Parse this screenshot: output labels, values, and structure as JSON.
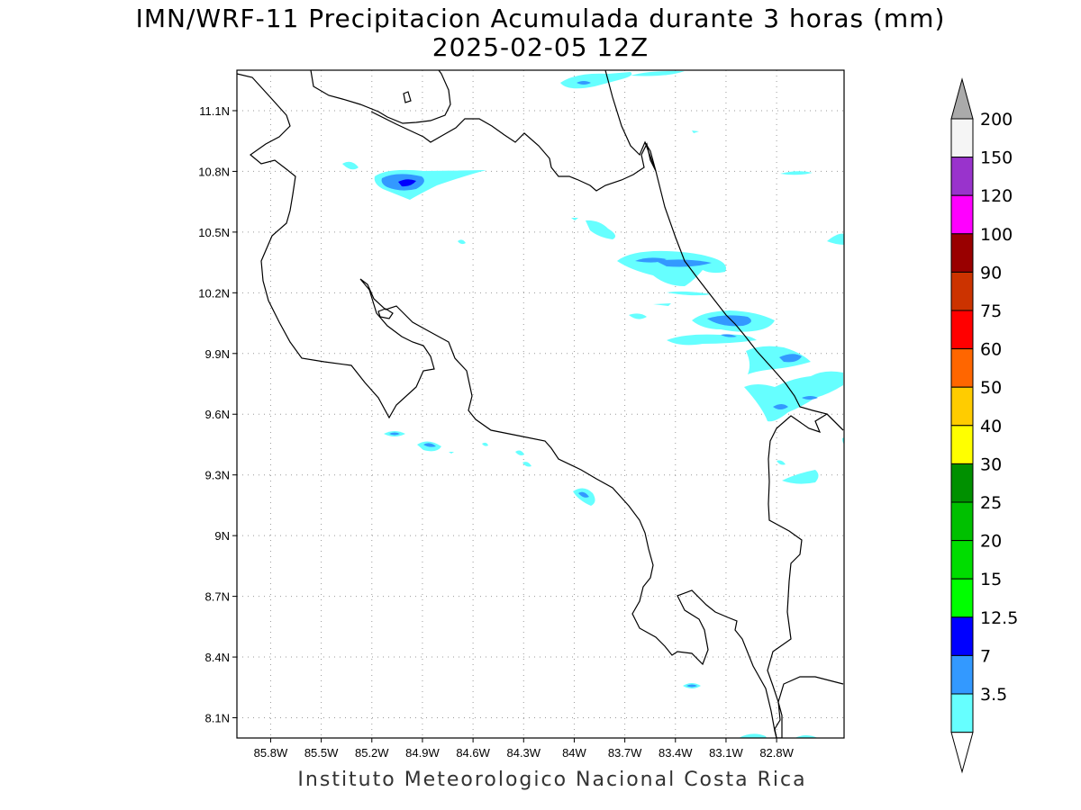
{
  "title": "IMN/WRF-11 Precipitacion Acumulada durante 3 horas (mm)",
  "subtitle": "2025-02-05 12Z",
  "credit": "Instituto Meteorologico Nacional Costa Rica",
  "map": {
    "lon_range": [
      -86.0,
      -82.4
    ],
    "lat_range": [
      8.0,
      11.3
    ],
    "lon_ticks": [
      {
        "value": -85.8,
        "label": "85.8W"
      },
      {
        "value": -85.5,
        "label": "85.5W"
      },
      {
        "value": -85.2,
        "label": "85.2W"
      },
      {
        "value": -84.9,
        "label": "84.9W"
      },
      {
        "value": -84.6,
        "label": "84.6W"
      },
      {
        "value": -84.3,
        "label": "84.3W"
      },
      {
        "value": -84.0,
        "label": "84W"
      },
      {
        "value": -83.7,
        "label": "83.7W"
      },
      {
        "value": -83.4,
        "label": "83.4W"
      },
      {
        "value": -83.1,
        "label": "83.1W"
      },
      {
        "value": -82.8,
        "label": "82.8W"
      }
    ],
    "lat_ticks": [
      {
        "value": 11.1,
        "label": "11.1N"
      },
      {
        "value": 10.8,
        "label": "10.8N"
      },
      {
        "value": 10.5,
        "label": "10.5N"
      },
      {
        "value": 10.2,
        "label": "10.2N"
      },
      {
        "value": 9.9,
        "label": "9.9N"
      },
      {
        "value": 9.6,
        "label": "9.6N"
      },
      {
        "value": 9.3,
        "label": "9.3N"
      },
      {
        "value": 9.0,
        "label": "9N"
      },
      {
        "value": 8.7,
        "label": "8.7N"
      },
      {
        "value": 8.4,
        "label": "8.4N"
      },
      {
        "value": 8.1,
        "label": "8.1N"
      }
    ],
    "grid": true
  },
  "colorbar": {
    "levels": [
      {
        "label": "3.5",
        "color": "#66ffff"
      },
      {
        "label": "7",
        "color": "#3399ff"
      },
      {
        "label": "12.5",
        "color": "#0000ff"
      },
      {
        "label": "15",
        "color": "#00ff00"
      },
      {
        "label": "20",
        "color": "#00dd00"
      },
      {
        "label": "25",
        "color": "#00c000"
      },
      {
        "label": "30",
        "color": "#009000"
      },
      {
        "label": "40",
        "color": "#ffff00"
      },
      {
        "label": "50",
        "color": "#ffcc00"
      },
      {
        "label": "60",
        "color": "#ff6600"
      },
      {
        "label": "75",
        "color": "#ff0000"
      },
      {
        "label": "90",
        "color": "#cc3300"
      },
      {
        "label": "100",
        "color": "#990000"
      },
      {
        "label": "120",
        "color": "#ff00ff"
      },
      {
        "label": "150",
        "color": "#9933cc"
      },
      {
        "label": "200",
        "color": "#f5f5f5"
      }
    ],
    "over_color": "#aaaaaa",
    "under_color": "#ffffff"
  }
}
